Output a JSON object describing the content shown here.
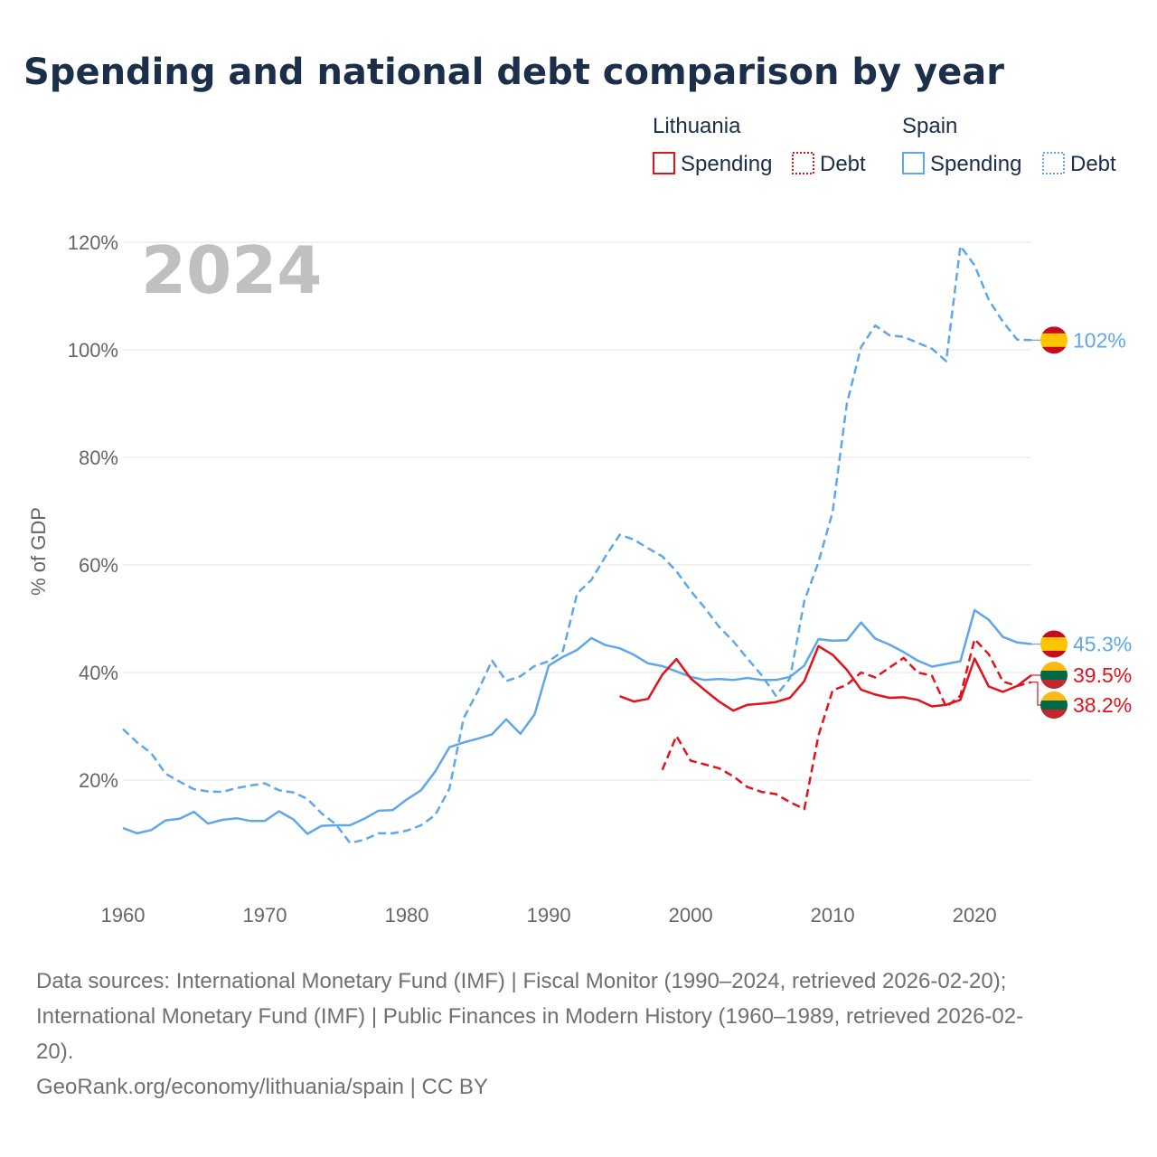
{
  "title": "Spending and national debt comparison by year",
  "legend": {
    "groups": [
      {
        "name": "Lithuania",
        "items": [
          {
            "label": "Spending",
            "style": "solid",
            "color": "#e3121b"
          },
          {
            "label": "Debt",
            "style": "dotted",
            "color": "#e3121b"
          }
        ]
      },
      {
        "name": "Spain",
        "items": [
          {
            "label": "Spending",
            "style": "solid",
            "color": "#5fa7e8"
          },
          {
            "label": "Debt",
            "style": "dotted",
            "color": "#5fa7e8"
          }
        ]
      }
    ]
  },
  "current_year": "2024",
  "footer": {
    "line1": "Data sources: International Monetary Fund (IMF) | Fiscal Monitor (1990–2024, retrieved 2026-02-20);",
    "line2": "International Monetary Fund (IMF) | Public Finances in Modern History (1960–1989, retrieved 2026-02-",
    "line3": "20).",
    "line4": "GeoRank.org/economy/lithuania/spain | CC BY"
  },
  "chart_data": {
    "type": "line",
    "ylabel": "% of GDP",
    "xlim": [
      1960,
      2024
    ],
    "ylim": [
      0,
      120
    ],
    "x_ticks": [
      1960,
      1970,
      1980,
      1990,
      2000,
      2010,
      2020
    ],
    "x_tick_labels": [
      "1960",
      "1970",
      "1980",
      "1990",
      "2000",
      "2010",
      "2020"
    ],
    "y_ticks": [
      20,
      40,
      60,
      80,
      100,
      120
    ],
    "y_tick_labels": [
      "20%",
      "40%",
      "60%",
      "80%",
      "100%",
      "120%"
    ],
    "colors": {
      "lithuania": "#e3121b",
      "spain": "#5fa7e8"
    },
    "series": [
      {
        "name": "Spain Debt",
        "country": "spain",
        "style": "dashed",
        "start_year": 1960,
        "values": [
          29.5,
          27,
          25,
          21.2,
          19.7,
          18.3,
          17.9,
          17.8,
          18.5,
          19,
          19.4,
          18.1,
          17.7,
          16.5,
          13.8,
          11.8,
          8.3,
          8.9,
          10.1,
          10.1,
          10.6,
          11.6,
          13.5,
          18.4,
          31.5,
          36.5,
          42.2,
          38.4,
          39.3,
          41.2,
          42.1,
          44,
          54.7,
          57.2,
          61.6,
          65.6,
          64.7,
          63.1,
          61.6,
          58.8,
          55.2,
          52,
          48.5,
          45.8,
          42.6,
          39.5,
          35.7,
          38.9,
          53.3,
          60.5,
          69.9,
          90,
          100.5,
          104.5,
          102.7,
          102.4,
          101.3,
          100.2,
          97.9,
          119.3,
          115.7,
          109.3,
          105.2,
          101.9,
          101.8
        ],
        "end_label": "102%",
        "end_value": 101.8
      },
      {
        "name": "Spain Spending",
        "country": "spain",
        "style": "solid",
        "start_year": 1960,
        "values": [
          11.1,
          10.1,
          10.7,
          12.5,
          12.8,
          14.1,
          11.9,
          12.6,
          12.9,
          12.4,
          12.4,
          14.2,
          12.7,
          10,
          11.5,
          11.6,
          11.6,
          12.8,
          14.3,
          14.4,
          16.4,
          18.1,
          21.6,
          26.1,
          27,
          27.7,
          28.5,
          31.3,
          28.6,
          32.2,
          41.3,
          42.9,
          44.2,
          46.4,
          45.1,
          44.5,
          43.3,
          41.7,
          41.2,
          40.2,
          39.2,
          38.6,
          38.8,
          38.6,
          39,
          38.6,
          38.6,
          39.2,
          41.3,
          46.2,
          45.9,
          46,
          49.3,
          46.3,
          45.2,
          43.8,
          42.2,
          41.1,
          41.6,
          42.1,
          51.6,
          49.8,
          46.6,
          45.6,
          45.3
        ],
        "end_label": "45.3%",
        "end_value": 45.3
      },
      {
        "name": "Lithuania Debt",
        "country": "lithuania",
        "style": "dashed",
        "start_year": 1998,
        "values": [
          21.9,
          28.2,
          23.6,
          22.9,
          22.2,
          20.7,
          18.7,
          17.8,
          17.4,
          15.9,
          14.6,
          28.3,
          36.7,
          37.7,
          40,
          39.1,
          40.9,
          42.7,
          40,
          39.4,
          33.6,
          35.7,
          46.2,
          43.4,
          38.3,
          37.5,
          38.2
        ],
        "end_label": "38.2%",
        "end_value": 38.2
      },
      {
        "name": "Lithuania Spending",
        "country": "lithuania",
        "style": "solid",
        "start_year": 1995,
        "values": [
          35.6,
          34.6,
          35.1,
          39.6,
          42.5,
          38.9,
          36.7,
          34.6,
          32.9,
          34,
          34.2,
          34.5,
          35.3,
          38.4,
          44.9,
          43.3,
          40.5,
          36.8,
          35.9,
          35.3,
          35.4,
          34.9,
          33.7,
          34,
          34.9,
          42.6,
          37.4,
          36.4,
          37.5,
          39.5
        ],
        "end_label": "39.5%",
        "end_value": 39.5
      }
    ]
  }
}
